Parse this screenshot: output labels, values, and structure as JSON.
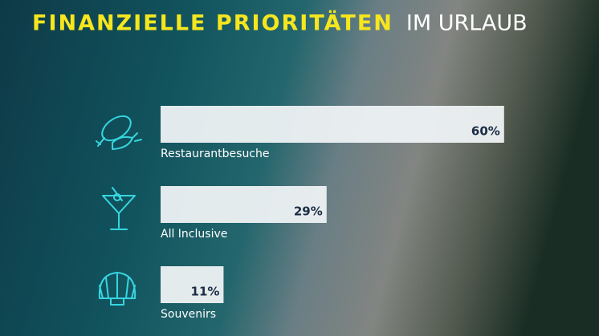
{
  "chart_data": {
    "type": "bar",
    "orientation": "horizontal",
    "title": "FINANZIELLE PRIORITÄTEN",
    "subtitle": "IM URLAUB",
    "categories": [
      "Restaurantbesuche",
      "All Inclusive",
      "Souvenirs"
    ],
    "values": [
      60,
      29,
      11
    ],
    "value_labels": [
      "60%",
      "29%",
      "11%"
    ],
    "color": "#eef2f4"
  }
}
